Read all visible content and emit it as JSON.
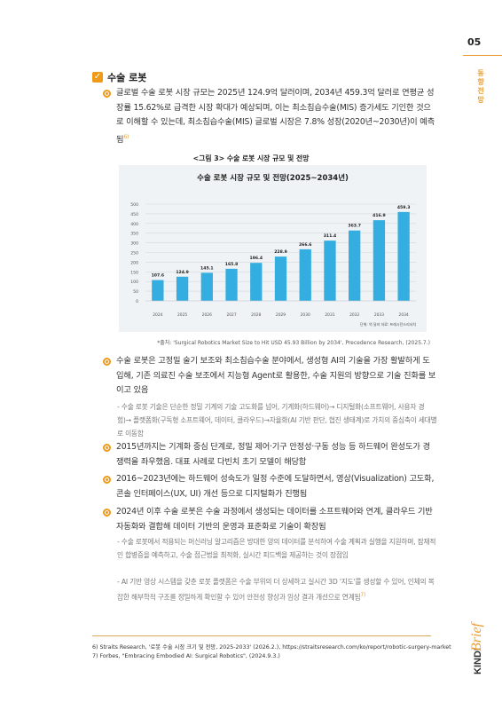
{
  "page": {
    "number": "05",
    "side_label": "동향 전망",
    "brand_bold": "KINDI",
    "brand_script": "Brief"
  },
  "section": {
    "title": "수술 로봇",
    "check_icon": "checkmark-icon",
    "accent_color": "#f09a1a"
  },
  "intro": {
    "text": "글로벌 수술 로봇 시장 규모는 2025년 124.9억 달러이며, 2034년 459.3억 달러로 연평균 성장률 15.62%로 급격한 시장 확대가 예상되며, 이는 최소침습수술(MIS) 증가세도 기인한 것으로 이해할 수 있는데, 최소침습수술(MIS) 글로벌 시장은 7.8% 성장(2020년~2030년)이 예측됨",
    "ref": "6)"
  },
  "figure": {
    "caption": "<그림 3> 수술 로봇 시장 규모 및 전망",
    "source": "*출처: 'Surgical Robotics Market Size to Hit USD 45.93 Billion by 2034', Precedence Research, (2025.7.)"
  },
  "chart_data": {
    "type": "bar",
    "title": "수술 로봇 시장 규모 및 전망(2025~2034년)",
    "categories": [
      "2024",
      "2025",
      "2026",
      "2027",
      "2028",
      "2029",
      "2030",
      "2031",
      "2032",
      "2033",
      "2034"
    ],
    "values": [
      107.6,
      124.9,
      145.1,
      165.8,
      196.4,
      228.9,
      266.6,
      311.4,
      363.7,
      416.9,
      459.3
    ],
    "yticks": [
      "500",
      "450",
      "400",
      "350",
      "300",
      "250",
      "200",
      "150",
      "100",
      "50",
      "0"
    ],
    "ylim": [
      0,
      500
    ],
    "grid": true,
    "bar_color": "#34aee0",
    "unit_note": "단위: 억 달러  자료: 프레시던스리서치"
  },
  "bullets": [
    {
      "text": "수술 로봇은 고정밀 술기 보조와 최소침습수술 분야에서, 생성형 AI의 기술을 가장 활발하게 도입해, 기존 의료진 수술 보조에서 지능형 Agent로 활용한, 수술 지원의 방향으로 기술 진화를 보이고 있음",
      "sub": "- 수술 로봇 기술은 단순한 정밀 기계의 기술 고도화를 넘어, 기계화(하드웨어)→ 디지털화(소프트웨어, 사용자 경험)→ 플랫폼화(구독형 소프트웨어, 데이터, 클라우드)→자율화(AI 기반 판단, 협진 생태계)로 가치의 중심축이 세대별로 이동함"
    },
    {
      "text": "2015년까지는 기계화 중심 단계로, 정밀 제어·기구 안정성·구동 성능 등 하드웨어 완성도가 경쟁력을 좌우했음. 대표 사례로 다빈치 초기 모델이 해당함"
    },
    {
      "text": "2016~2023년에는 하드웨어 성숙도가 일정 수준에 도달하면서, 영상(Visualization) 고도화, 콘솔 인터페이스(UX, UI) 개선 등으로 디지털화가 진행됨"
    },
    {
      "text": "2024년 이후 수술 로봇은 수술 과정에서 생성되는 데이터를 소프트웨어와 연계, 클라우드 기반 자동화와 결합해 데이터 기반의 운영과 표준화로 기술이 확장됨",
      "subs": [
        "- 수술 로봇에서 적용되는 머신러닝 알고리즘은 방대한 양의 데이터를 분석하여 수술 계획과 실행을 지원하며, 잠재적인 합병증을 예측하고, 수술 접근법을 최적화, 실시간 피드백을 제공하는 것이 장점임",
        "- AI 기반 영상 시스템을 갖춘 로봇 플랫폼은 수술 부위의 더 상세하고 실시간 3D '지도'를 생성할 수 있어, 인체의 복잡한 해부학적 구조를 정밀하게 확인할 수 있어 안전성 향상과 임상 결과 개선으로 연계됨"
      ],
      "ref": "7)"
    }
  ],
  "footnotes": [
    "6) Straits Research, '로봇 수술 시장 크기 및 전망, 2025-2033' (2026.2.), https://straitsresearch.com/ko/report/robotic-surgery-market",
    "7) Forbes, \"Embracing Embodied AI: Surgical Robotics\", (2024.9.3.)"
  ]
}
